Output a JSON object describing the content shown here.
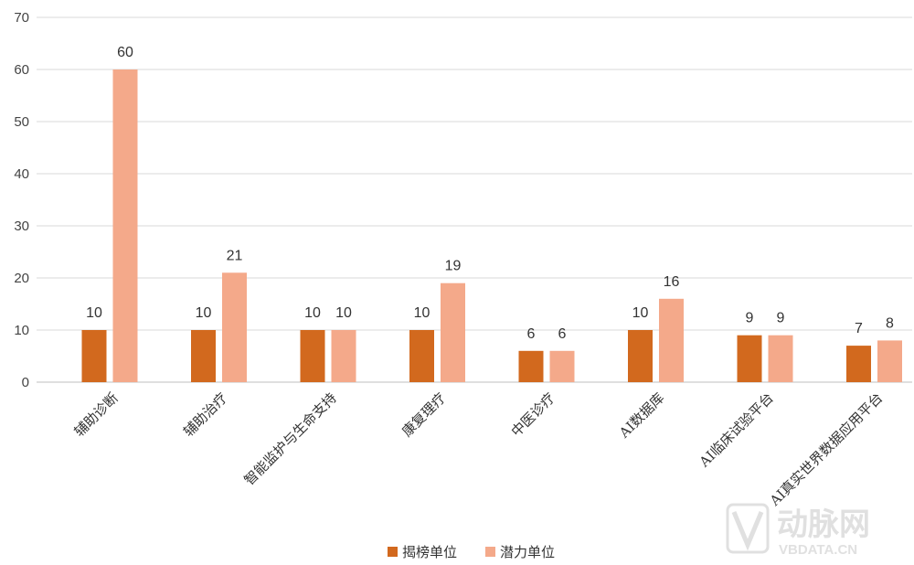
{
  "chart_data": {
    "type": "bar",
    "title": "",
    "xlabel": "",
    "ylabel": "",
    "ylim": [
      0,
      70
    ],
    "yticks": [
      0,
      10,
      20,
      30,
      40,
      50,
      60,
      70
    ],
    "grid": true,
    "legend_position": "bottom",
    "categories": [
      "辅助诊断",
      "辅助治疗",
      "智能监护与生命支持",
      "康复理疗",
      "中医诊疗",
      "AI数据库",
      "AI临床试验平台",
      "AI真实世界数据应用平台"
    ],
    "series": [
      {
        "name": "揭榜单位",
        "color": "#D2691E",
        "values": [
          10,
          10,
          10,
          10,
          6,
          10,
          9,
          7
        ]
      },
      {
        "name": "潜力单位",
        "color": "#F4A98A",
        "values": [
          60,
          21,
          10,
          19,
          6,
          16,
          9,
          8
        ]
      }
    ]
  },
  "watermark": {
    "brand": "动脉网",
    "url": "VBDATA.CN"
  }
}
